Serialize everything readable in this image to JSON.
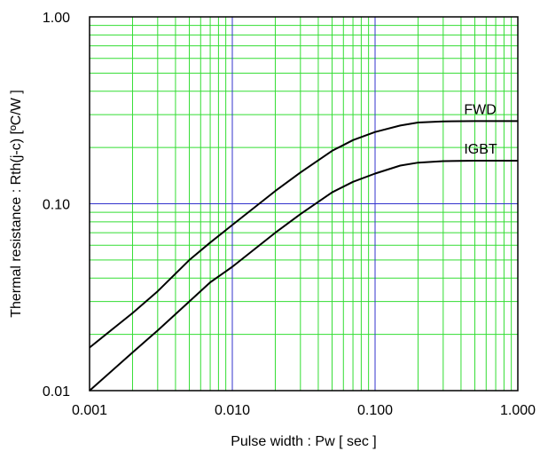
{
  "chart_data": {
    "type": "line",
    "xscale": "log",
    "yscale": "log",
    "xlim": [
      0.001,
      1.0
    ],
    "ylim": [
      0.01,
      1.0
    ],
    "grid": true,
    "xlabel": "Pulse width : Pw [ sec ]",
    "ylabel": "Thermal resistance : Rth(j-c) [ºC/W ]",
    "xticks": [
      {
        "value": 0.001,
        "label": "0.001"
      },
      {
        "value": 0.01,
        "label": "0.010"
      },
      {
        "value": 0.1,
        "label": "0.100"
      },
      {
        "value": 1.0,
        "label": "1.000"
      }
    ],
    "yticks": [
      {
        "value": 0.01,
        "label": "0.01"
      },
      {
        "value": 0.1,
        "label": "0.10"
      },
      {
        "value": 1.0,
        "label": "1.00"
      }
    ],
    "colors": {
      "minor_grid": "#33dd33",
      "major_grid": "#3333cc",
      "frame": "#000000",
      "curve": "#000000"
    },
    "series": [
      {
        "name": "FWD",
        "x": [
          0.001,
          0.002,
          0.003,
          0.005,
          0.007,
          0.01,
          0.02,
          0.03,
          0.05,
          0.07,
          0.1,
          0.15,
          0.2,
          0.3,
          0.5,
          0.7,
          1.0
        ],
        "y": [
          0.017,
          0.026,
          0.034,
          0.05,
          0.062,
          0.077,
          0.117,
          0.147,
          0.192,
          0.219,
          0.242,
          0.262,
          0.272,
          0.276,
          0.277,
          0.277,
          0.277
        ]
      },
      {
        "name": "IGBT",
        "x": [
          0.001,
          0.002,
          0.003,
          0.005,
          0.007,
          0.01,
          0.02,
          0.03,
          0.05,
          0.07,
          0.1,
          0.15,
          0.2,
          0.3,
          0.5,
          0.7,
          1.0
        ],
        "y": [
          0.01,
          0.016,
          0.021,
          0.03,
          0.038,
          0.046,
          0.07,
          0.088,
          0.115,
          0.131,
          0.145,
          0.16,
          0.166,
          0.169,
          0.17,
          0.17,
          0.17
        ]
      }
    ]
  }
}
